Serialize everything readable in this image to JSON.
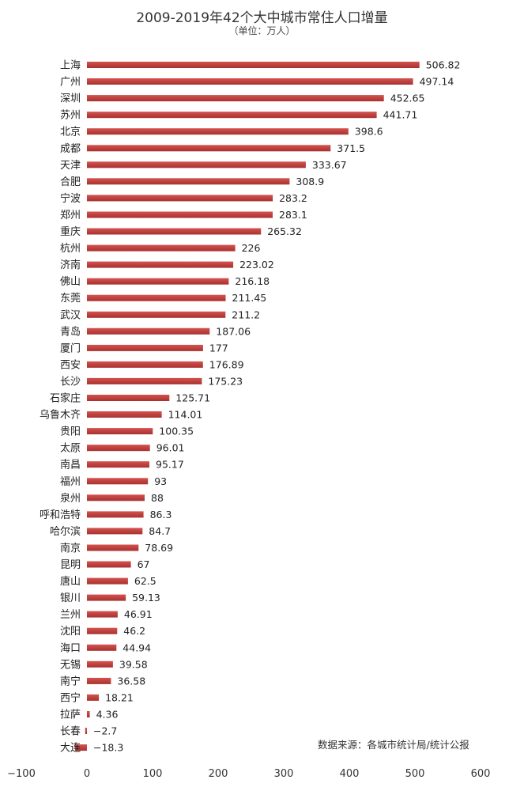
{
  "chart_data": {
    "type": "bar",
    "orientation": "horizontal",
    "title": "2009-2019年42个大中城市常住人口增量",
    "subtitle": "（单位：万人）",
    "categories": [
      "上海",
      "广州",
      "深圳",
      "苏州",
      "北京",
      "成都",
      "天津",
      "合肥",
      "宁波",
      "郑州",
      "重庆",
      "杭州",
      "济南",
      "佛山",
      "东莞",
      "武汉",
      "青岛",
      "厦门",
      "西安",
      "长沙",
      "石家庄",
      "乌鲁木齐",
      "贵阳",
      "太原",
      "南昌",
      "福州",
      "泉州",
      "呼和浩特",
      "哈尔滨",
      "南京",
      "昆明",
      "唐山",
      "银川",
      "兰州",
      "沈阳",
      "海口",
      "无锡",
      "南宁",
      "西宁",
      "拉萨",
      "长春",
      "大连"
    ],
    "values": [
      506.82,
      497.14,
      452.65,
      441.71,
      398.6,
      371.5,
      333.67,
      308.9,
      283.2,
      283.1,
      265.32,
      226,
      223.02,
      216.18,
      211.45,
      211.2,
      187.06,
      177,
      176.89,
      175.23,
      125.71,
      114.01,
      100.35,
      96.01,
      95.17,
      93,
      88,
      86.3,
      84.7,
      78.69,
      67,
      62.5,
      59.13,
      46.91,
      46.2,
      44.94,
      39.58,
      36.58,
      18.21,
      4.36,
      -2.7,
      -18.3
    ],
    "value_labels": [
      "506.82",
      "497.14",
      "452.65",
      "441.71",
      "398.6",
      "371.5",
      "333.67",
      "308.9",
      "283.2",
      "283.1",
      "265.32",
      "226",
      "223.02",
      "216.18",
      "211.45",
      "211.2",
      "187.06",
      "177",
      "176.89",
      "175.23",
      "125.71",
      "114.01",
      "100.35",
      "96.01",
      "95.17",
      "93",
      "88",
      "86.3",
      "84.7",
      "78.69",
      "67",
      "62.5",
      "59.13",
      "46.91",
      "46.2",
      "44.94",
      "39.58",
      "36.58",
      "18.21",
      "4.36",
      "−2.7",
      "−18.3"
    ],
    "xlim": [
      -100,
      600
    ],
    "xticks": [
      -100,
      0,
      100,
      200,
      300,
      400,
      500,
      600
    ],
    "xtick_labels": [
      "−100",
      "0",
      "100",
      "200",
      "300",
      "400",
      "500",
      "600"
    ],
    "bar_color": "#c0403d",
    "grid": false,
    "legend": "none"
  },
  "source": "数据来源：各城市统计局/统计公报"
}
